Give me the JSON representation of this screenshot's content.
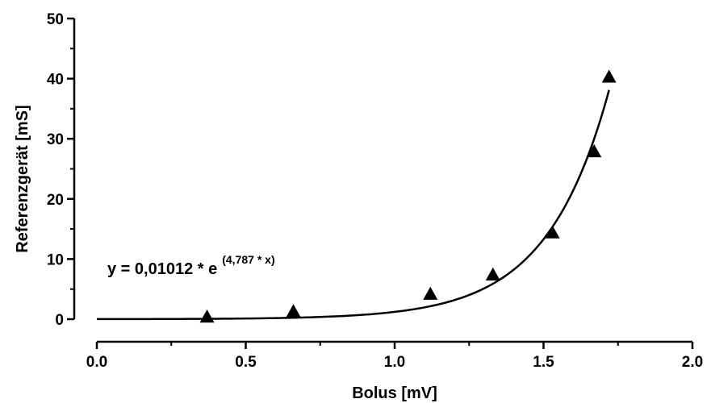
{
  "chart_data": {
    "type": "scatter",
    "title": "",
    "xlabel": "Bolus [mV]",
    "ylabel": "Referenzgerät [mS]",
    "xlim": [
      0.0,
      2.0
    ],
    "ylim": [
      0,
      50
    ],
    "x_ticks": [
      "0.0",
      "0.5",
      "1.0",
      "1.5",
      "2.0"
    ],
    "y_ticks": [
      "0",
      "10",
      "20",
      "30",
      "40",
      "50"
    ],
    "grid": false,
    "legend": "none",
    "marker": "triangle",
    "color": "#000000",
    "series": [
      {
        "points": [
          {
            "x": 0.37,
            "y": 0.4
          },
          {
            "x": 0.66,
            "y": 1.3
          },
          {
            "x": 1.12,
            "y": 4.2
          },
          {
            "x": 1.33,
            "y": 7.4
          },
          {
            "x": 1.53,
            "y": 14.4
          },
          {
            "x": 1.67,
            "y": 27.9
          },
          {
            "x": 1.72,
            "y": 40.3
          }
        ]
      }
    ],
    "fit": {
      "type": "exponential",
      "a": 0.01012,
      "b": 4.787,
      "x_range": [
        0.0,
        1.72
      ],
      "annotation_main": "y = 0,01012 * e",
      "annotation_exp": "(4,787 * x)"
    }
  }
}
